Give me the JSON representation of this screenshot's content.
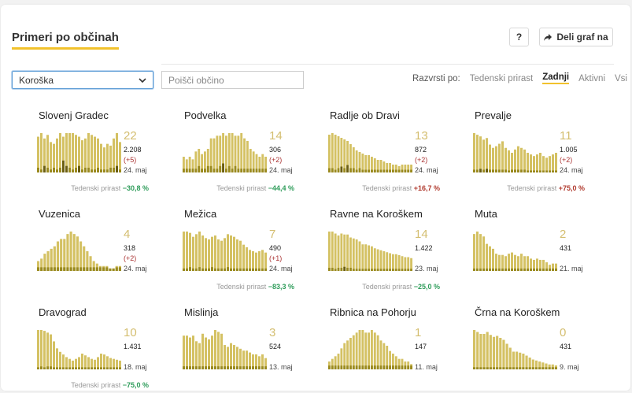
{
  "title": "Primeri po občinah",
  "help_label": "?",
  "share_label": "Deli graf na",
  "region_select": "Koroška",
  "search_placeholder": "Poišči občino",
  "sort": {
    "label": "Razvrsti po:",
    "options": [
      "Tedenski prirast",
      "Zadnji",
      "Aktivni",
      "Vsi"
    ],
    "active": "Zadnji"
  },
  "weekly_label": "Tedenski prirast",
  "colors": {
    "bar": "#d4c163",
    "bar_dark": "#9a8a1f",
    "bar_dark2": "#6b5e10",
    "accent": "#f2c22c"
  },
  "chart_data": [
    {
      "type": "bar",
      "title": "Slovenj Gradec",
      "big": "22",
      "total": "2.208",
      "delta": "(+5)",
      "date": "24. maj",
      "weekly": "−30,8 %",
      "trend": "neg",
      "values": [
        20,
        22,
        19,
        21,
        17,
        16,
        19,
        22,
        20,
        22,
        22,
        22,
        21,
        20,
        18,
        19,
        22,
        21,
        20,
        19,
        16,
        14,
        16,
        15,
        19,
        22,
        17
      ],
      "dark": [
        2,
        1,
        3,
        2,
        1,
        2,
        1,
        2,
        6,
        3,
        2,
        1,
        2,
        3,
        1,
        2,
        2,
        1,
        1,
        2,
        1,
        1,
        1,
        2,
        2,
        3,
        1
      ]
    },
    {
      "type": "bar",
      "title": "Podvelka",
      "big": "14",
      "total": "306",
      "delta": "(+2)",
      "date": "24. maj",
      "weekly": "−44,4 %",
      "trend": "neg",
      "values": [
        6,
        5,
        6,
        5,
        8,
        9,
        7,
        8,
        9,
        13,
        13,
        14,
        14,
        15,
        14,
        15,
        15,
        14,
        14,
        15,
        13,
        12,
        9,
        8,
        7,
        6,
        7,
        6
      ],
      "dark": [
        1,
        1,
        1,
        1,
        1,
        2,
        1,
        1,
        2,
        2,
        1,
        1,
        2,
        3,
        1,
        2,
        1,
        2,
        1,
        1,
        1,
        1,
        1,
        1,
        1,
        1,
        1,
        1
      ]
    },
    {
      "type": "bar",
      "title": "Radlje ob Dravi",
      "big": "13",
      "total": "872",
      "delta": "(+2)",
      "date": "24. maj",
      "weekly": "+16,7 %",
      "trend": "pos",
      "values": [
        24,
        25,
        24,
        23,
        22,
        21,
        20,
        18,
        16,
        14,
        13,
        12,
        11,
        11,
        10,
        9,
        8,
        8,
        7,
        6,
        6,
        5,
        5,
        4,
        5,
        5,
        5,
        5
      ],
      "dark": [
        2,
        2,
        1,
        2,
        3,
        2,
        4,
        2,
        2,
        1,
        2,
        1,
        1,
        1,
        1,
        1,
        1,
        1,
        1,
        1,
        1,
        1,
        1,
        1,
        1,
        1,
        1,
        1
      ]
    },
    {
      "type": "bar",
      "title": "Prevalje",
      "big": "11",
      "total": "1.005",
      "delta": "(+2)",
      "date": "24. maj",
      "weekly": "+75,0 %",
      "trend": "pos",
      "values": [
        48,
        46,
        44,
        40,
        42,
        34,
        30,
        32,
        35,
        38,
        30,
        27,
        24,
        28,
        32,
        30,
        28,
        24,
        22,
        20,
        22,
        24,
        20,
        18,
        20,
        22,
        24
      ],
      "dark": [
        2,
        2,
        3,
        2,
        3,
        2,
        2,
        2,
        2,
        2,
        2,
        1,
        2,
        2,
        2,
        2,
        2,
        1,
        1,
        1,
        1,
        1,
        1,
        1,
        1,
        1,
        1
      ]
    },
    {
      "type": "bar",
      "title": "Vuzenica",
      "big": "4",
      "total": "318",
      "delta": "(+2)",
      "date": "24. maj",
      "weekly": "",
      "trend": "",
      "values": [
        4,
        5,
        7,
        8,
        9,
        10,
        12,
        13,
        13,
        15,
        16,
        15,
        14,
        12,
        10,
        8,
        6,
        4,
        3,
        2,
        2,
        2,
        1,
        1,
        2,
        2
      ],
      "dark": [
        1,
        1,
        1,
        1,
        1,
        1,
        1,
        1,
        1,
        1,
        1,
        1,
        1,
        1,
        1,
        1,
        1,
        1,
        1,
        1,
        1,
        1,
        1,
        1,
        1,
        1
      ]
    },
    {
      "type": "bar",
      "title": "Mežica",
      "big": "7",
      "total": "490",
      "delta": "(+1)",
      "date": "24. maj",
      "weekly": "−83,3 %",
      "trend": "neg",
      "values": [
        30,
        30,
        29,
        26,
        28,
        30,
        27,
        25,
        24,
        26,
        27,
        24,
        23,
        25,
        28,
        27,
        26,
        24,
        23,
        20,
        18,
        16,
        15,
        14,
        15,
        16,
        14
      ],
      "dark": [
        1,
        1,
        2,
        1,
        1,
        2,
        1,
        1,
        1,
        2,
        1,
        1,
        1,
        1,
        2,
        1,
        1,
        1,
        1,
        1,
        1,
        1,
        1,
        1,
        1,
        1,
        1
      ]
    },
    {
      "type": "bar",
      "title": "Ravne na Koroškem",
      "big": "14",
      "total": "1.422",
      "delta": "",
      "date": "23. maj",
      "weekly": "−25,0 %",
      "trend": "neg",
      "values": [
        40,
        40,
        38,
        36,
        38,
        37,
        37,
        34,
        33,
        32,
        30,
        27,
        27,
        26,
        25,
        23,
        22,
        21,
        20,
        19,
        18,
        17,
        17,
        16,
        15,
        14,
        14,
        13
      ],
      "dark": [
        2,
        2,
        1,
        2,
        2,
        3,
        2,
        2,
        1,
        1,
        1,
        1,
        1,
        1,
        1,
        1,
        1,
        1,
        1,
        1,
        1,
        1,
        1,
        1,
        1,
        1,
        1,
        1
      ]
    },
    {
      "type": "bar",
      "title": "Muta",
      "big": "2",
      "total": "431",
      "delta": "",
      "date": "21. maj",
      "weekly": "",
      "trend": "",
      "values": [
        30,
        32,
        30,
        28,
        22,
        20,
        18,
        14,
        13,
        13,
        12,
        14,
        15,
        13,
        12,
        14,
        12,
        12,
        10,
        9,
        10,
        9,
        9,
        7,
        5,
        6,
        6
      ],
      "dark": [
        1,
        1,
        1,
        1,
        1,
        1,
        1,
        1,
        1,
        1,
        1,
        1,
        1,
        1,
        1,
        1,
        1,
        1,
        1,
        1,
        1,
        1,
        1,
        1,
        1,
        1,
        1
      ]
    },
    {
      "type": "bar",
      "title": "Dravograd",
      "big": "10",
      "total": "1.431",
      "delta": "",
      "date": "18. maj",
      "weekly": "−75,0 %",
      "trend": "neg",
      "values": [
        45,
        45,
        44,
        42,
        40,
        32,
        24,
        20,
        17,
        14,
        12,
        10,
        12,
        14,
        18,
        16,
        14,
        12,
        11,
        14,
        18,
        17,
        15,
        13,
        12,
        11,
        10
      ],
      "dark": [
        1,
        2,
        1,
        2,
        2,
        1,
        1,
        1,
        1,
        1,
        1,
        1,
        1,
        1,
        1,
        1,
        1,
        1,
        1,
        1,
        1,
        1,
        1,
        1,
        1,
        1,
        1
      ]
    },
    {
      "type": "bar",
      "title": "Mislinja",
      "big": "3",
      "total": "524",
      "delta": "",
      "date": "13. maj",
      "weekly": "",
      "trend": "",
      "values": [
        18,
        18,
        17,
        18,
        15,
        14,
        19,
        17,
        16,
        18,
        21,
        20,
        19,
        13,
        12,
        14,
        13,
        12,
        11,
        10,
        10,
        9,
        8,
        8,
        7,
        8,
        6
      ],
      "dark": [
        1,
        1,
        1,
        1,
        1,
        1,
        1,
        1,
        1,
        1,
        1,
        1,
        1,
        1,
        1,
        1,
        1,
        1,
        1,
        1,
        1,
        1,
        1,
        1,
        1,
        1,
        1
      ]
    },
    {
      "type": "bar",
      "title": "Ribnica na Pohorju",
      "big": "1",
      "total": "147",
      "delta": "",
      "date": "11. maj",
      "weekly": "",
      "trend": "",
      "values": [
        3,
        4,
        5,
        6,
        8,
        10,
        11,
        12,
        13,
        14,
        15,
        15,
        14,
        14,
        15,
        14,
        13,
        11,
        10,
        9,
        7,
        6,
        5,
        4,
        4,
        3,
        3,
        2
      ],
      "dark": [
        1,
        1,
        1,
        1,
        1,
        1,
        1,
        1,
        1,
        1,
        1,
        1,
        1,
        1,
        1,
        1,
        1,
        1,
        1,
        1,
        1,
        1,
        1,
        1,
        1,
        1,
        1,
        1
      ]
    },
    {
      "type": "bar",
      "title": "Črna na Koroškem",
      "big": "0",
      "total": "431",
      "delta": "",
      "date": "9. maj",
      "weekly": "",
      "trend": "",
      "values": [
        40,
        38,
        36,
        36,
        38,
        35,
        33,
        34,
        32,
        30,
        26,
        22,
        18,
        18,
        17,
        16,
        14,
        12,
        10,
        9,
        8,
        7,
        6,
        5,
        5,
        4
      ],
      "dark": [
        1,
        1,
        1,
        1,
        1,
        1,
        1,
        1,
        1,
        1,
        1,
        1,
        1,
        1,
        1,
        1,
        1,
        1,
        1,
        1,
        1,
        1,
        1,
        1,
        1,
        1
      ]
    }
  ]
}
